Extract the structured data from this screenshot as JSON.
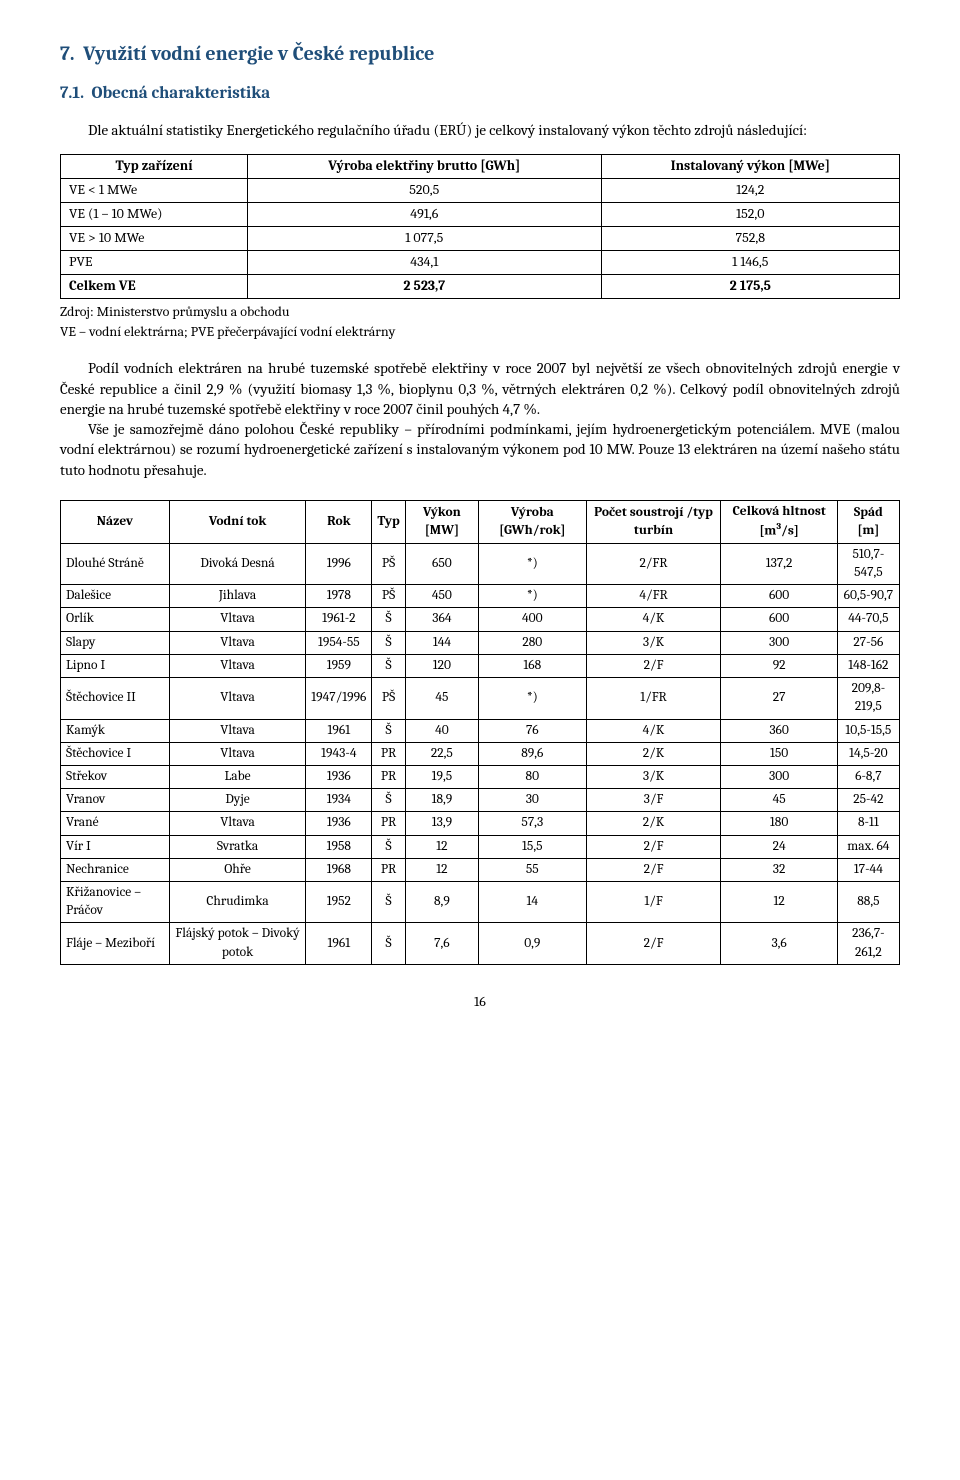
{
  "heading_section": "7.  Využití vodní energie v České republice",
  "heading_sub": "7.1.  Obecná charakteristika",
  "intro": "Dle aktuální statistiky Energetického regulačního úřadu (ERÚ) je celkový instalovaný výkon těchto zdrojů následující:",
  "table1": {
    "headers": [
      "Typ zařízení",
      "Výroba elektřiny brutto [GWh]",
      "Instalovaný výkon [MWe]"
    ],
    "rows": [
      {
        "label": "VE < 1 MWe",
        "v1": "520,5",
        "v2": "124,2",
        "bold": false
      },
      {
        "label": "VE (1 – 10 MWe)",
        "v1": "491,6",
        "v2": "152,0",
        "bold": false
      },
      {
        "label": "VE > 10 MWe",
        "v1": "1 077,5",
        "v2": "752,8",
        "bold": false
      },
      {
        "label": "PVE",
        "v1": "434,1",
        "v2": "1 146,5",
        "bold": false
      },
      {
        "label": "Celkem VE",
        "v1": "2 523,7",
        "v2": "2 175,5",
        "bold": true
      }
    ]
  },
  "source1": "Zdroj: Ministerstvo průmyslu a obchodu",
  "source2": "VE – vodní elektrárna; PVE přečerpávající vodní elektrárny",
  "para1": "Podíl vodních elektráren na hrubé tuzemské spotřebě elektřiny v roce 2007 byl největší ze všech obnovitelných zdrojů energie v České republice a činil 2,9 % (využití biomasy 1,3 %, bioplynu 0,3 %, větrných elektráren 0,2 %). Celkový podíl obnovitelných zdrojů energie na hrubé tuzemské spotřebě elektřiny v roce 2007 činil pouhých 4,7 %.",
  "para2": "Vše je samozřejmě dáno polohou České republiky – přírodními podmínkami, jejím hydroenergetickým potenciálem. MVE (malou vodní elektrárnou) se rozumí hydroenergetické zařízení s instalovaným výkonem pod 10 MW. Pouze 13 elektráren na území našeho státu tuto hodnotu přesahuje.",
  "table2": {
    "headers": [
      "Název",
      "Vodní tok",
      "Rok",
      "Typ",
      "Výkon [MW]",
      "Výroba [GWh/rok]",
      "Počet soustrojí /typ turbín",
      "Celková hltnost [m³/s]",
      "Spád [m]"
    ],
    "rows": [
      [
        "Dlouhé Stráně",
        "Divoká Desná",
        "1996",
        "PŠ",
        "650",
        "*)",
        "2/FR",
        "137,2",
        "510,7-547,5"
      ],
      [
        "Dalešice",
        "Jihlava",
        "1978",
        "PŠ",
        "450",
        "*)",
        "4/FR",
        "600",
        "60,5-90,7"
      ],
      [
        "Orlík",
        "Vltava",
        "1961-2",
        "Š",
        "364",
        "400",
        "4/K",
        "600",
        "44-70,5"
      ],
      [
        "Slapy",
        "Vltava",
        "1954-55",
        "Š",
        "144",
        "280",
        "3/K",
        "300",
        "27-56"
      ],
      [
        "Lipno I",
        "Vltava",
        "1959",
        "Š",
        "120",
        "168",
        "2/F",
        "92",
        "148-162"
      ],
      [
        "Štěchovice II",
        "Vltava",
        "1947/1996",
        "PŠ",
        "45",
        "*)",
        "1/FR",
        "27",
        "209,8-219,5"
      ],
      [
        "Kamýk",
        "Vltava",
        "1961",
        "Š",
        "40",
        "76",
        "4/K",
        "360",
        "10,5-15,5"
      ],
      [
        "Štěchovice I",
        "Vltava",
        "1943-4",
        "PR",
        "22,5",
        "89,6",
        "2/K",
        "150",
        "14,5-20"
      ],
      [
        "Střekov",
        "Labe",
        "1936",
        "PR",
        "19,5",
        "80",
        "3/K",
        "300",
        "6-8,7"
      ],
      [
        "Vranov",
        "Dyje",
        "1934",
        "Š",
        "18,9",
        "30",
        "3/F",
        "45",
        "25-42"
      ],
      [
        "Vrané",
        "Vltava",
        "1936",
        "PR",
        "13,9",
        "57,3",
        "2/K",
        "180",
        "8-11"
      ],
      [
        "Vír I",
        "Svratka",
        "1958",
        "Š",
        "12",
        "15,5",
        "2/F",
        "24",
        "max. 64"
      ],
      [
        "Nechranice",
        "Ohře",
        "1968",
        "PR",
        "12",
        "55",
        "2/F",
        "32",
        "17-44"
      ],
      [
        "Křižanovice – Práčov",
        "Chrudimka",
        "1952",
        "Š",
        "8,9",
        "14",
        "1/F",
        "12",
        "88,5"
      ],
      [
        "Fláje – Meziboří",
        "Flájský potok – Divoký potok",
        "1961",
        "Š",
        "7,6",
        "0,9",
        "2/F",
        "3,6",
        "236,7-261,2"
      ]
    ]
  },
  "page_number": "16",
  "colors": {
    "heading": "#1f4e79",
    "text": "#000000",
    "border": "#000000",
    "background": "#ffffff"
  }
}
